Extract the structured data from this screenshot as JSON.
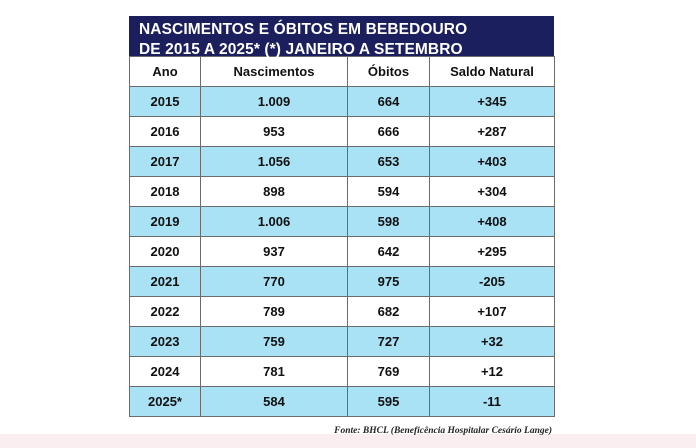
{
  "chart_data": {
    "type": "table",
    "title_line1": "NASCIMENTOS E ÓBITOS EM BEBEDOURO",
    "title_line2": "DE 2015 A 2025* (*) JANEIRO A SETEMBRO",
    "columns": [
      "Ano",
      "Nascimentos",
      "Óbitos",
      "Saldo Natural"
    ],
    "rows": [
      [
        "2015",
        "1.009",
        "664",
        "+345"
      ],
      [
        "2016",
        "953",
        "666",
        "+287"
      ],
      [
        "2017",
        "1.056",
        "653",
        "+403"
      ],
      [
        "2018",
        "898",
        "594",
        "+304"
      ],
      [
        "2019",
        "1.006",
        "598",
        "+408"
      ],
      [
        "2020",
        "937",
        "642",
        "+295"
      ],
      [
        "2021",
        "770",
        "975",
        "-205"
      ],
      [
        "2022",
        "789",
        "682",
        "+107"
      ],
      [
        "2023",
        "759",
        "727",
        "+32"
      ],
      [
        "2024",
        "781",
        "769",
        "+12"
      ],
      [
        "2025*",
        "584",
        "595",
        "-11"
      ]
    ],
    "source": "Fonte: BHCL (Beneficência Hospitalar Cesário Lange)"
  },
  "colors": {
    "header_bg": "#1c1f5e",
    "stripe": "#a9e2f5"
  }
}
